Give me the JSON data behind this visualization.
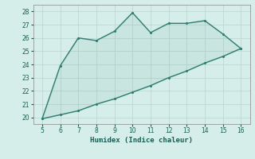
{
  "xlabel": "Humidex (Indice chaleur)",
  "x_upper": [
    5,
    6,
    7,
    8,
    9,
    10,
    11,
    12,
    13,
    14,
    15,
    16
  ],
  "y_upper": [
    19.9,
    23.9,
    26.0,
    25.8,
    26.5,
    27.9,
    26.4,
    27.1,
    27.1,
    27.3,
    26.3,
    25.2
  ],
  "x_lower": [
    5,
    6,
    7,
    8,
    9,
    10,
    11,
    12,
    13,
    14,
    15,
    16
  ],
  "y_lower": [
    19.9,
    20.2,
    20.5,
    21.0,
    21.4,
    21.9,
    22.4,
    23.0,
    23.5,
    24.1,
    24.6,
    25.2
  ],
  "line_color": "#2e7d6e",
  "fill_color": "#2e7d6e",
  "bg_color": "#d6eeea",
  "grid_color": "#c0d8d4",
  "ylim": [
    19.5,
    28.5
  ],
  "xlim": [
    4.5,
    16.5
  ],
  "yticks": [
    20,
    21,
    22,
    23,
    24,
    25,
    26,
    27,
    28
  ],
  "xticks": [
    5,
    6,
    7,
    8,
    9,
    10,
    11,
    12,
    13,
    14,
    15,
    16
  ]
}
